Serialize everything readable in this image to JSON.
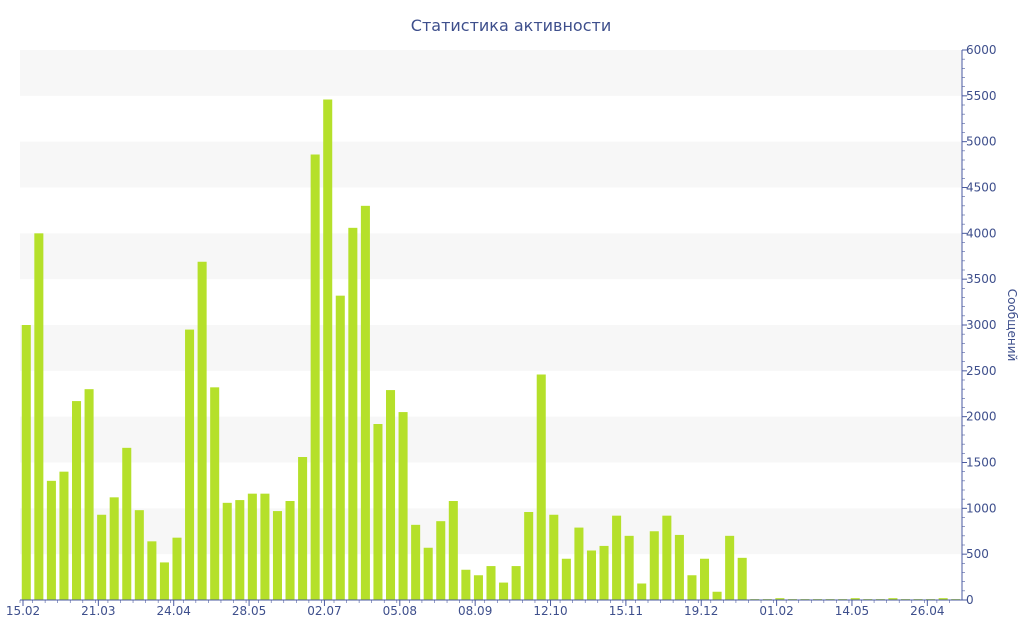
{
  "chart_data": {
    "type": "bar",
    "title": "Статистика активности",
    "ylabel": "Сообщений",
    "xlabel": "",
    "ylim": [
      0,
      6000
    ],
    "y_ticks": [
      0,
      500,
      1000,
      1500,
      2000,
      2500,
      3000,
      3500,
      4000,
      4500,
      5000,
      5500,
      6000
    ],
    "x_tick_labels": [
      {
        "index": 0,
        "label": "15.02"
      },
      {
        "index": 6,
        "label": "21.03"
      },
      {
        "index": 12,
        "label": "24.04"
      },
      {
        "index": 18,
        "label": "28.05"
      },
      {
        "index": 24,
        "label": "02.07"
      },
      {
        "index": 30,
        "label": "05.08"
      },
      {
        "index": 36,
        "label": "08.09"
      },
      {
        "index": 42,
        "label": "12.10"
      },
      {
        "index": 48,
        "label": "15.11"
      },
      {
        "index": 54,
        "label": "19.12"
      },
      {
        "index": 60,
        "label": "01.02"
      },
      {
        "index": 66,
        "label": "14.05"
      },
      {
        "index": 72,
        "label": "26.04"
      }
    ],
    "values": [
      3000,
      4000,
      1300,
      1400,
      2170,
      2300,
      930,
      1120,
      1660,
      980,
      640,
      410,
      680,
      2950,
      3690,
      2320,
      1060,
      1090,
      1160,
      1160,
      970,
      1080,
      1560,
      4860,
      5460,
      3320,
      4060,
      4300,
      1920,
      2290,
      2050,
      820,
      570,
      860,
      1080,
      330,
      270,
      370,
      190,
      370,
      960,
      2460,
      930,
      450,
      790,
      540,
      590,
      920,
      700,
      180,
      750,
      920,
      710,
      270,
      450,
      90,
      700,
      460,
      10,
      10,
      20,
      10,
      10,
      10,
      10,
      10,
      20,
      10,
      10,
      20,
      10,
      10,
      10,
      20,
      10
    ],
    "bar_color": "#b5e02a",
    "band_color": "#f7f7f7",
    "text_color": "#3e4f8c",
    "axis_color": "#4a5aa0",
    "grid": false
  }
}
